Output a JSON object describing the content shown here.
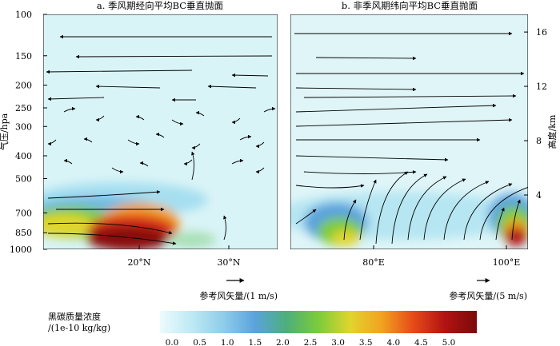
{
  "chart_data": [
    {
      "type": "heatmap",
      "title": "a. 季风期经向平均BC垂直抛面",
      "ylabel": "气压/hpa",
      "yticks": [
        "100",
        "150",
        "200",
        "250",
        "300",
        "400",
        "500",
        "700",
        "850",
        "1000"
      ],
      "yscale": "log (pressure)",
      "xticks": [
        "20°N",
        "30°N"
      ],
      "reference_vector_label": "参考风矢量/(1 m/s)",
      "high_concentration_core": "lower levels around 15–25°N, about 4.5–5.0"
    },
    {
      "type": "heatmap",
      "title": "b. 非季风期纬向平均BC垂直抛面",
      "ylabel": "高度/km",
      "yticks": [
        "4",
        "8",
        "12",
        "16"
      ],
      "xticks": [
        "80°E",
        "100°E"
      ],
      "reference_vector_label": "参考风矢量/(5 m/s)",
      "high_concentration_core": "near surface around 101–103°E, about 4.5–5.0"
    }
  ],
  "colorbar": {
    "label_line1": "黑碳质量浓度",
    "label_line2": "/(1e-10 kg/kg)",
    "ticks": [
      "0.0",
      "0.5",
      "1.0",
      "1.5",
      "2.0",
      "2.5",
      "3.0",
      "3.5",
      "4.0",
      "4.5",
      "5.0"
    ],
    "min": 0,
    "max": 5.25,
    "colors": [
      "#ecfbfd",
      "#bfe9f4",
      "#8fcdea",
      "#5aa3dc",
      "#4caf7a",
      "#7ccc3a",
      "#e0d52e",
      "#f3a21f",
      "#e54a18",
      "#b21212",
      "#7a0a0a"
    ]
  }
}
